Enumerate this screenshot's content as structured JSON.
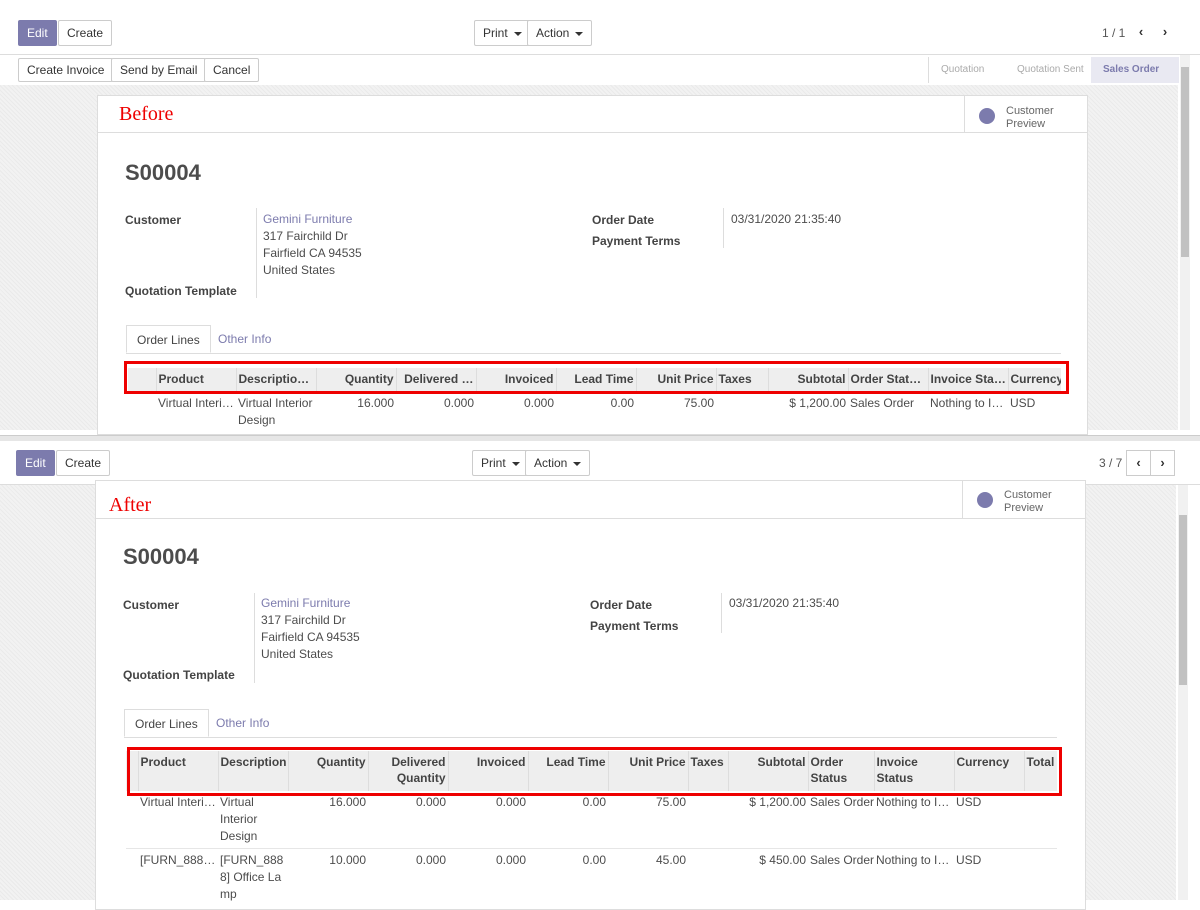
{
  "accent": "#7c7bad",
  "annotation_color": "#e00000",
  "before": {
    "annotation": "Before",
    "toolbar": {
      "edit": "Edit",
      "create": "Create",
      "print": "Print",
      "action": "Action",
      "pager": "1 / 1"
    },
    "actions": {
      "create_invoice": "Create Invoice",
      "send_email": "Send by Email",
      "cancel": "Cancel"
    },
    "statusbar": [
      "Quotation",
      "Quotation Sent",
      "Sales Order"
    ],
    "customer_preview": "Customer Preview",
    "order": {
      "name": "S00004",
      "customer_label": "Customer",
      "customer_name": "Gemini Furniture",
      "addr1": "317 Fairchild Dr",
      "addr2": "Fairfield CA 94535",
      "addr3": "United States",
      "template_label": "Quotation Template",
      "date_label": "Order Date",
      "date": "03/31/2020 21:35:40",
      "terms_label": "Payment Terms"
    },
    "tabs": [
      "Order Lines",
      "Other Info"
    ],
    "columns": [
      "Product",
      "Descriptio…",
      "Quantity",
      "Delivered …",
      "Invoiced",
      "Lead Time",
      "Unit Price",
      "Taxes",
      "Subtotal",
      "Order Stat…",
      "Invoice Sta…",
      "Currency"
    ],
    "rows": [
      [
        "Virtual Interi…",
        "Virtual Interior Design",
        "16.000",
        "0.000",
        "0.000",
        "0.00",
        "75.00",
        "",
        "$ 1,200.00",
        "Sales Order",
        "Nothing to I…",
        "USD"
      ]
    ]
  },
  "after": {
    "annotation": "After",
    "toolbar": {
      "edit": "Edit",
      "create": "Create",
      "print": "Print",
      "action": "Action",
      "pager": "3 / 7"
    },
    "customer_preview": "Customer Preview",
    "order": {
      "name": "S00004",
      "customer_label": "Customer",
      "customer_name": "Gemini Furniture",
      "addr1": "317 Fairchild Dr",
      "addr2": "Fairfield CA 94535",
      "addr3": "United States",
      "template_label": "Quotation Template",
      "date_label": "Order Date",
      "date": "03/31/2020 21:35:40",
      "terms_label": "Payment Terms"
    },
    "tabs": [
      "Order Lines",
      "Other Info"
    ],
    "columns": [
      "Product",
      "Description",
      "Quantity",
      "Delivered Quantity",
      "Invoiced",
      "Lead Time",
      "Unit Price",
      "Taxes",
      "Subtotal",
      "Order Status",
      "Invoice Status",
      "Currency",
      "Total T"
    ],
    "rows": [
      [
        "Virtual Interi…",
        "Virtual Interior Design",
        "16.000",
        "0.000",
        "0.000",
        "0.00",
        "75.00",
        "",
        "$ 1,200.00",
        "Sales Order",
        "Nothing to I…",
        "USD",
        ""
      ],
      [
        "[FURN_888…",
        "[FURN_8888] Office Lamp",
        "10.000",
        "0.000",
        "0.000",
        "0.00",
        "45.00",
        "",
        "$ 450.00",
        "Sales Order",
        "Nothing to I…",
        "USD",
        ""
      ]
    ]
  }
}
